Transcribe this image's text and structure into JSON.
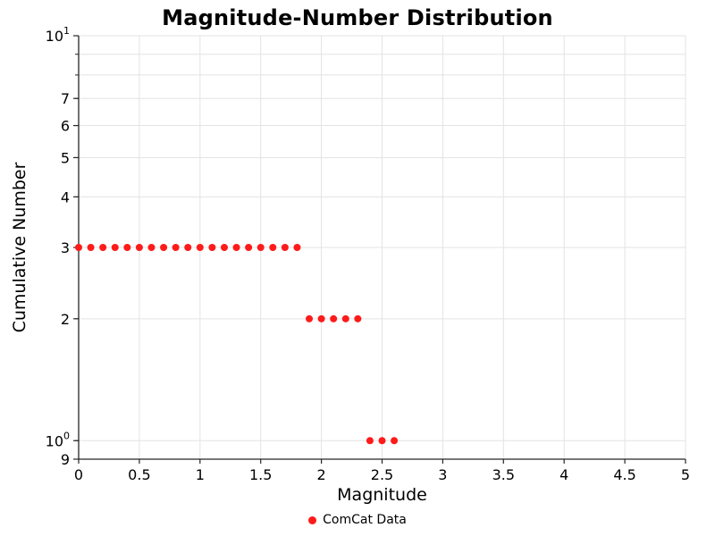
{
  "chart_data": {
    "type": "scatter",
    "title": "Magnitude-Number Distribution",
    "xlabel": "Magnitude",
    "ylabel": "Cumulative Number",
    "xlim": [
      0,
      5
    ],
    "ylim": [
      0.9,
      10
    ],
    "yscale": "log",
    "grid": true,
    "legend_position": "bottom-center",
    "x_ticks": [
      {
        "v": 0,
        "label": "0"
      },
      {
        "v": 0.5,
        "label": "0.5"
      },
      {
        "v": 1,
        "label": "1"
      },
      {
        "v": 1.5,
        "label": "1.5"
      },
      {
        "v": 2,
        "label": "2"
      },
      {
        "v": 2.5,
        "label": "2.5"
      },
      {
        "v": 3,
        "label": "3"
      },
      {
        "v": 3.5,
        "label": "3.5"
      },
      {
        "v": 4,
        "label": "4"
      },
      {
        "v": 4.5,
        "label": "4.5"
      },
      {
        "v": 5,
        "label": "5"
      }
    ],
    "y_ticks": [
      {
        "v": 10,
        "base": "10",
        "sup": "1"
      },
      {
        "v": 7,
        "base": "7"
      },
      {
        "v": 6,
        "base": "6"
      },
      {
        "v": 5,
        "base": "5"
      },
      {
        "v": 4,
        "base": "4"
      },
      {
        "v": 3,
        "base": "3"
      },
      {
        "v": 2,
        "base": "2"
      },
      {
        "v": 1,
        "base": "10",
        "sup": "0"
      },
      {
        "v": 0.9,
        "base": "9"
      }
    ],
    "x_gridlines": [
      0,
      0.5,
      1,
      1.5,
      2,
      2.5,
      3,
      3.5,
      4,
      4.5,
      5
    ],
    "y_gridlines": [
      1,
      2,
      3,
      4,
      5,
      6,
      7,
      8,
      9,
      10
    ],
    "legend": {
      "label": "ComCat Data",
      "marker_color": "#ff1a1a"
    },
    "series": [
      {
        "name": "ComCat Data",
        "color": "#ff1a1a",
        "marker": "circle",
        "x": [
          0.0,
          0.1,
          0.2,
          0.3,
          0.4,
          0.5,
          0.6,
          0.7,
          0.8,
          0.9,
          1.0,
          1.1,
          1.2,
          1.3,
          1.4,
          1.5,
          1.6,
          1.7,
          1.8,
          1.9,
          2.0,
          2.1,
          2.2,
          2.3,
          2.4,
          2.5,
          2.6
        ],
        "y": [
          3,
          3,
          3,
          3,
          3,
          3,
          3,
          3,
          3,
          3,
          3,
          3,
          3,
          3,
          3,
          3,
          3,
          3,
          3,
          2,
          2,
          2,
          2,
          2,
          1,
          1,
          1
        ]
      }
    ]
  },
  "colors": {
    "background": "#ffffff",
    "grid": "#e3e3e3",
    "spine": "#262626",
    "text": "#000000"
  }
}
